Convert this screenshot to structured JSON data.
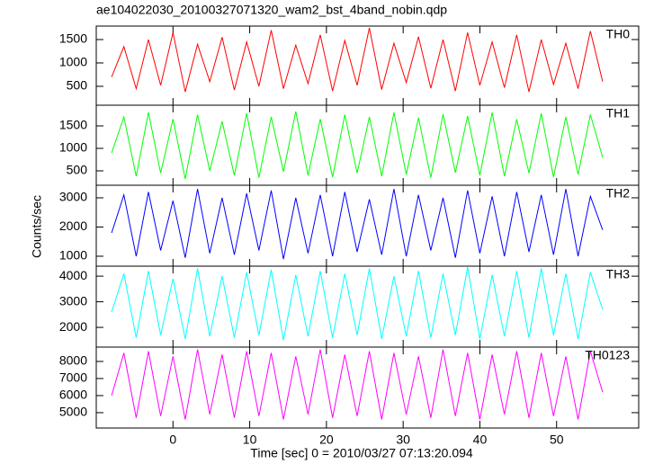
{
  "title": "ae104022030_20100327071320_wam2_bst_4band_nobin.qdp",
  "ylabel": "Counts/sec",
  "xlabel": "Time [sec] 0 = 2010/03/27 07:13:20.094",
  "chart_data": [
    {
      "type": "line",
      "xlim": [
        -10,
        60.7
      ],
      "xticks": [
        0,
        10,
        20,
        30,
        40,
        50
      ],
      "ylim": [
        96,
        1788
      ],
      "yticks": [
        500,
        1000,
        1500
      ],
      "x": [
        -8,
        -6.4,
        -4.8,
        -3.2,
        -1.6,
        0,
        1.6,
        3.2,
        4.8,
        6.4,
        8,
        9.6,
        11.2,
        12.8,
        14.4,
        16,
        17.6,
        19.2,
        20.8,
        22.4,
        24,
        25.6,
        27.2,
        28.8,
        30.4,
        32,
        33.6,
        35.2,
        36.8,
        38.4,
        40,
        41.6,
        43.2,
        44.8,
        46.4,
        48,
        49.6,
        51.2,
        52.8,
        54.4,
        56
      ],
      "series": [
        {
          "name": "TH0",
          "color": "#ff0000",
          "values": [
            700,
            1350,
            450,
            1500,
            520,
            1650,
            380,
            1400,
            600,
            1550,
            420,
            1450,
            500,
            1700,
            450,
            1380,
            560,
            1600,
            400,
            1480,
            520,
            1750,
            430,
            1420,
            580,
            1560,
            460,
            1500,
            400,
            1650,
            520,
            1450,
            470,
            1600,
            380,
            1500,
            540,
            1420,
            450,
            1680,
            600
          ]
        }
      ]
    },
    {
      "type": "line",
      "xlim": [
        -10,
        60.7
      ],
      "xticks": [
        0,
        10,
        20,
        30,
        40,
        50
      ],
      "ylim": [
        180,
        1960
      ],
      "yticks": [
        500,
        1000,
        1500
      ],
      "x": [
        -8,
        -6.4,
        -4.8,
        -3.2,
        -1.6,
        0,
        1.6,
        3.2,
        4.8,
        6.4,
        8,
        9.6,
        11.2,
        12.8,
        14.4,
        16,
        17.6,
        19.2,
        20.8,
        22.4,
        24,
        25.6,
        27.2,
        28.8,
        30.4,
        32,
        33.6,
        35.2,
        36.8,
        38.4,
        40,
        41.6,
        43.2,
        44.8,
        46.4,
        48,
        49.6,
        51.2,
        52.8,
        54.4,
        56
      ],
      "series": [
        {
          "name": "TH1",
          "color": "#00ff00",
          "values": [
            900,
            1700,
            380,
            1800,
            450,
            1650,
            320,
            1750,
            500,
            1600,
            400,
            1780,
            350,
            1700,
            480,
            1820,
            400,
            1650,
            360,
            1750,
            450,
            1700,
            380,
            1800,
            420,
            1680,
            350,
            1760,
            460,
            1720,
            400,
            1800,
            380,
            1650,
            450,
            1780,
            360,
            1700,
            420,
            1750,
            800
          ]
        }
      ]
    },
    {
      "type": "line",
      "xlim": [
        -10,
        60.7
      ],
      "xticks": [
        0,
        10,
        20,
        30,
        40,
        50
      ],
      "ylim": [
        660,
        3430
      ],
      "yticks": [
        1000,
        2000,
        3000
      ],
      "x": [
        -8,
        -6.4,
        -4.8,
        -3.2,
        -1.6,
        0,
        1.6,
        3.2,
        4.8,
        6.4,
        8,
        9.6,
        11.2,
        12.8,
        14.4,
        16,
        17.6,
        19.2,
        20.8,
        22.4,
        24,
        25.6,
        27.2,
        28.8,
        30.4,
        32,
        33.6,
        35.2,
        36.8,
        38.4,
        40,
        41.6,
        43.2,
        44.8,
        46.4,
        48,
        49.6,
        51.2,
        52.8,
        54.4,
        56
      ],
      "series": [
        {
          "name": "TH2",
          "color": "#0000ff",
          "values": [
            1800,
            3100,
            1000,
            3200,
            1200,
            2900,
            950,
            3300,
            1100,
            3000,
            1050,
            3150,
            1200,
            3250,
            900,
            3000,
            1100,
            3100,
            1000,
            3200,
            1150,
            2950,
            1050,
            3300,
            1000,
            3100,
            1200,
            3000,
            950,
            3250,
            1100,
            3050,
            1000,
            3200,
            1150,
            3100,
            1050,
            3300,
            1000,
            3050,
            1900
          ]
        }
      ]
    },
    {
      "type": "line",
      "xlim": [
        -10,
        60.7
      ],
      "xticks": [
        0,
        10,
        20,
        30,
        40,
        50
      ],
      "ylim": [
        1230,
        4390
      ],
      "yticks": [
        2000,
        3000,
        4000
      ],
      "x": [
        -8,
        -6.4,
        -4.8,
        -3.2,
        -1.6,
        0,
        1.6,
        3.2,
        4.8,
        6.4,
        8,
        9.6,
        11.2,
        12.8,
        14.4,
        16,
        17.6,
        19.2,
        20.8,
        22.4,
        24,
        25.6,
        27.2,
        28.8,
        30.4,
        32,
        33.6,
        35.2,
        36.8,
        38.4,
        40,
        41.6,
        43.2,
        44.8,
        46.4,
        48,
        49.6,
        51.2,
        52.8,
        54.4,
        56
      ],
      "series": [
        {
          "name": "TH3",
          "color": "#00ffff",
          "values": [
            2600,
            4100,
            1600,
            4200,
            1700,
            3900,
            1550,
            4300,
            1650,
            4000,
            1600,
            4150,
            1700,
            4250,
            1500,
            4050,
            1650,
            4200,
            1600,
            4100,
            1700,
            4300,
            1550,
            4000,
            1650,
            4200,
            1600,
            4100,
            1700,
            4350,
            1550,
            4050,
            1650,
            4200,
            1600,
            4300,
            1700,
            4100,
            1550,
            4150,
            2700
          ]
        }
      ]
    },
    {
      "type": "line",
      "xlim": [
        -10,
        60.7
      ],
      "xticks": [
        0,
        10,
        20,
        30,
        40,
        50
      ],
      "ylim": [
        4100,
        8840
      ],
      "yticks": [
        5000,
        6000,
        7000,
        8000
      ],
      "x": [
        -8,
        -6.4,
        -4.8,
        -3.2,
        -1.6,
        0,
        1.6,
        3.2,
        4.8,
        6.4,
        8,
        9.6,
        11.2,
        12.8,
        14.4,
        16,
        17.6,
        19.2,
        20.8,
        22.4,
        24,
        25.6,
        27.2,
        28.8,
        30.4,
        32,
        33.6,
        35.2,
        36.8,
        38.4,
        40,
        41.6,
        43.2,
        44.8,
        46.4,
        48,
        49.6,
        51.2,
        52.8,
        54.4,
        56
      ],
      "series": [
        {
          "name": "TH0123",
          "color": "#ff00ff",
          "values": [
            6000,
            8500,
            4700,
            8600,
            4800,
            8300,
            4600,
            8700,
            4900,
            8400,
            4700,
            8600,
            4800,
            8500,
            4600,
            8300,
            4900,
            8700,
            4700,
            8400,
            4800,
            8600,
            4600,
            8500,
            4900,
            8300,
            4700,
            8700,
            4800,
            8500,
            4600,
            8400,
            4900,
            8600,
            4700,
            8500,
            4800,
            8300,
            4600,
            8600,
            6200
          ]
        }
      ]
    }
  ]
}
